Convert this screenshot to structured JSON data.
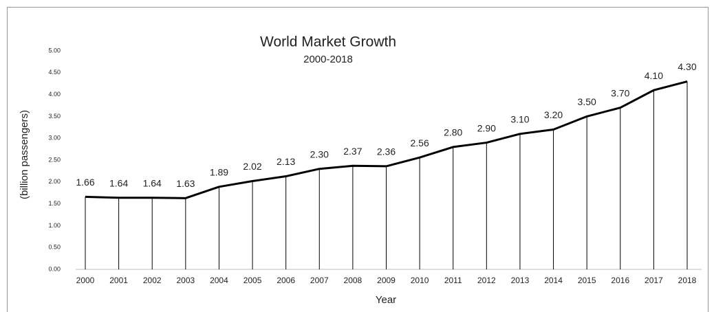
{
  "chart_data": {
    "type": "line",
    "title": "World Market Growth",
    "subtitle": "2000-2018",
    "x_label": "Year",
    "y_label": "(billion passengers)",
    "categories": [
      "2000",
      "2001",
      "2002",
      "2003",
      "2004",
      "2005",
      "2006",
      "2007",
      "2008",
      "2009",
      "2010",
      "2011",
      "2012",
      "2013",
      "2014",
      "2015",
      "2016",
      "2017",
      "2018"
    ],
    "values": [
      1.66,
      1.64,
      1.64,
      1.63,
      1.89,
      2.02,
      2.13,
      2.3,
      2.37,
      2.36,
      2.56,
      2.8,
      2.9,
      3.1,
      3.2,
      3.5,
      3.7,
      4.1,
      4.3
    ],
    "value_labels": [
      "1.66",
      "1.64",
      "1.64",
      "1.63",
      "1.89",
      "2.02",
      "2.13",
      "2.30",
      "2.37",
      "2.36",
      "2.56",
      "2.80",
      "2.90",
      "3.10",
      "3.20",
      "3.50",
      "3.70",
      "4.10",
      "4.30"
    ],
    "color": "#000000",
    "drop_lines": true,
    "ylim": [
      0,
      5
    ],
    "yticks": [
      {
        "value": 0,
        "label": "0.00"
      },
      {
        "value": 0.5,
        "label": "0.50"
      },
      {
        "value": 1,
        "label": "1.00"
      },
      {
        "value": 1.5,
        "label": "1.50"
      },
      {
        "value": 2,
        "label": "2.00"
      },
      {
        "value": 2.5,
        "label": "2.50"
      },
      {
        "value": 3,
        "label": "3.00"
      },
      {
        "value": 3.5,
        "label": "3.50"
      },
      {
        "value": 4,
        "label": "4.00"
      },
      {
        "value": 4.5,
        "label": "4.50"
      },
      {
        "value": 5,
        "label": "5.00"
      }
    ],
    "grid": false
  }
}
